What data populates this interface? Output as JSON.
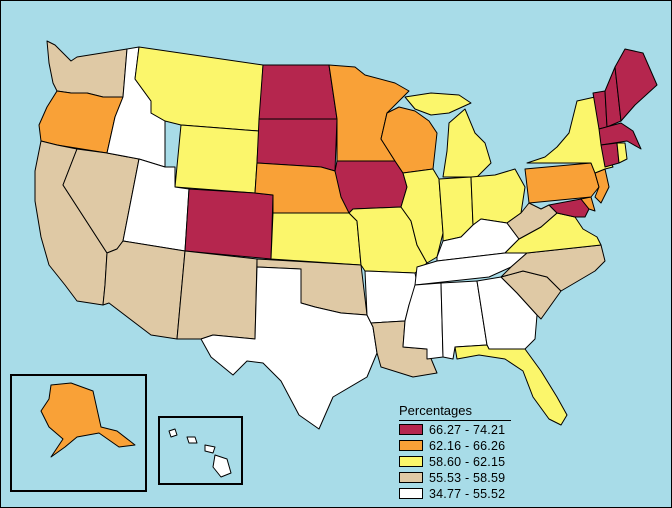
{
  "legend": {
    "title": "Percentages",
    "classes": [
      {
        "label": "66.27 - 74.21",
        "color": "#b5264e"
      },
      {
        "label": "62.16 - 66.26",
        "color": "#f9a137"
      },
      {
        "label": "58.60 - 62.15",
        "color": "#fbf66b"
      },
      {
        "label": "55.53 - 58.59",
        "color": "#dfc9a5"
      },
      {
        "label": "34.77 - 55.52",
        "color": "#ffffff"
      }
    ]
  },
  "colors": {
    "ocean": "#a8dce8",
    "border": "#000000"
  },
  "states": [
    {
      "name": "Washington",
      "class": 3
    },
    {
      "name": "Oregon",
      "class": 1
    },
    {
      "name": "California",
      "class": 3
    },
    {
      "name": "Nevada",
      "class": 3
    },
    {
      "name": "Idaho",
      "class": 4
    },
    {
      "name": "Montana",
      "class": 2
    },
    {
      "name": "Wyoming",
      "class": 2
    },
    {
      "name": "Utah",
      "class": 4
    },
    {
      "name": "Arizona",
      "class": 3
    },
    {
      "name": "Colorado",
      "class": 0
    },
    {
      "name": "New Mexico",
      "class": 3
    },
    {
      "name": "North Dakota",
      "class": 0
    },
    {
      "name": "South Dakota",
      "class": 0
    },
    {
      "name": "Nebraska",
      "class": 1
    },
    {
      "name": "Kansas",
      "class": 2
    },
    {
      "name": "Oklahoma",
      "class": 3
    },
    {
      "name": "Texas",
      "class": 4
    },
    {
      "name": "Minnesota",
      "class": 1
    },
    {
      "name": "Iowa",
      "class": 0
    },
    {
      "name": "Missouri",
      "class": 2
    },
    {
      "name": "Arkansas",
      "class": 4
    },
    {
      "name": "Louisiana",
      "class": 3
    },
    {
      "name": "Wisconsin",
      "class": 1
    },
    {
      "name": "Illinois",
      "class": 2
    },
    {
      "name": "Michigan",
      "class": 2
    },
    {
      "name": "Indiana",
      "class": 2
    },
    {
      "name": "Ohio",
      "class": 2
    },
    {
      "name": "Kentucky",
      "class": 4
    },
    {
      "name": "Tennessee",
      "class": 4
    },
    {
      "name": "Mississippi",
      "class": 4
    },
    {
      "name": "Alabama",
      "class": 4
    },
    {
      "name": "Georgia",
      "class": 4
    },
    {
      "name": "Florida",
      "class": 2
    },
    {
      "name": "South Carolina",
      "class": 3
    },
    {
      "name": "North Carolina",
      "class": 3
    },
    {
      "name": "Virginia",
      "class": 2
    },
    {
      "name": "West Virginia",
      "class": 3
    },
    {
      "name": "Maryland",
      "class": 0
    },
    {
      "name": "Delaware",
      "class": 1
    },
    {
      "name": "Pennsylvania",
      "class": 1
    },
    {
      "name": "New Jersey",
      "class": 1
    },
    {
      "name": "New York",
      "class": 2
    },
    {
      "name": "Connecticut",
      "class": 0
    },
    {
      "name": "Rhode Island",
      "class": 2
    },
    {
      "name": "Massachusetts",
      "class": 0
    },
    {
      "name": "Vermont",
      "class": 0
    },
    {
      "name": "New Hampshire",
      "class": 0
    },
    {
      "name": "Maine",
      "class": 0
    },
    {
      "name": "Alaska",
      "class": 1
    },
    {
      "name": "Hawaii",
      "class": 4
    }
  ]
}
